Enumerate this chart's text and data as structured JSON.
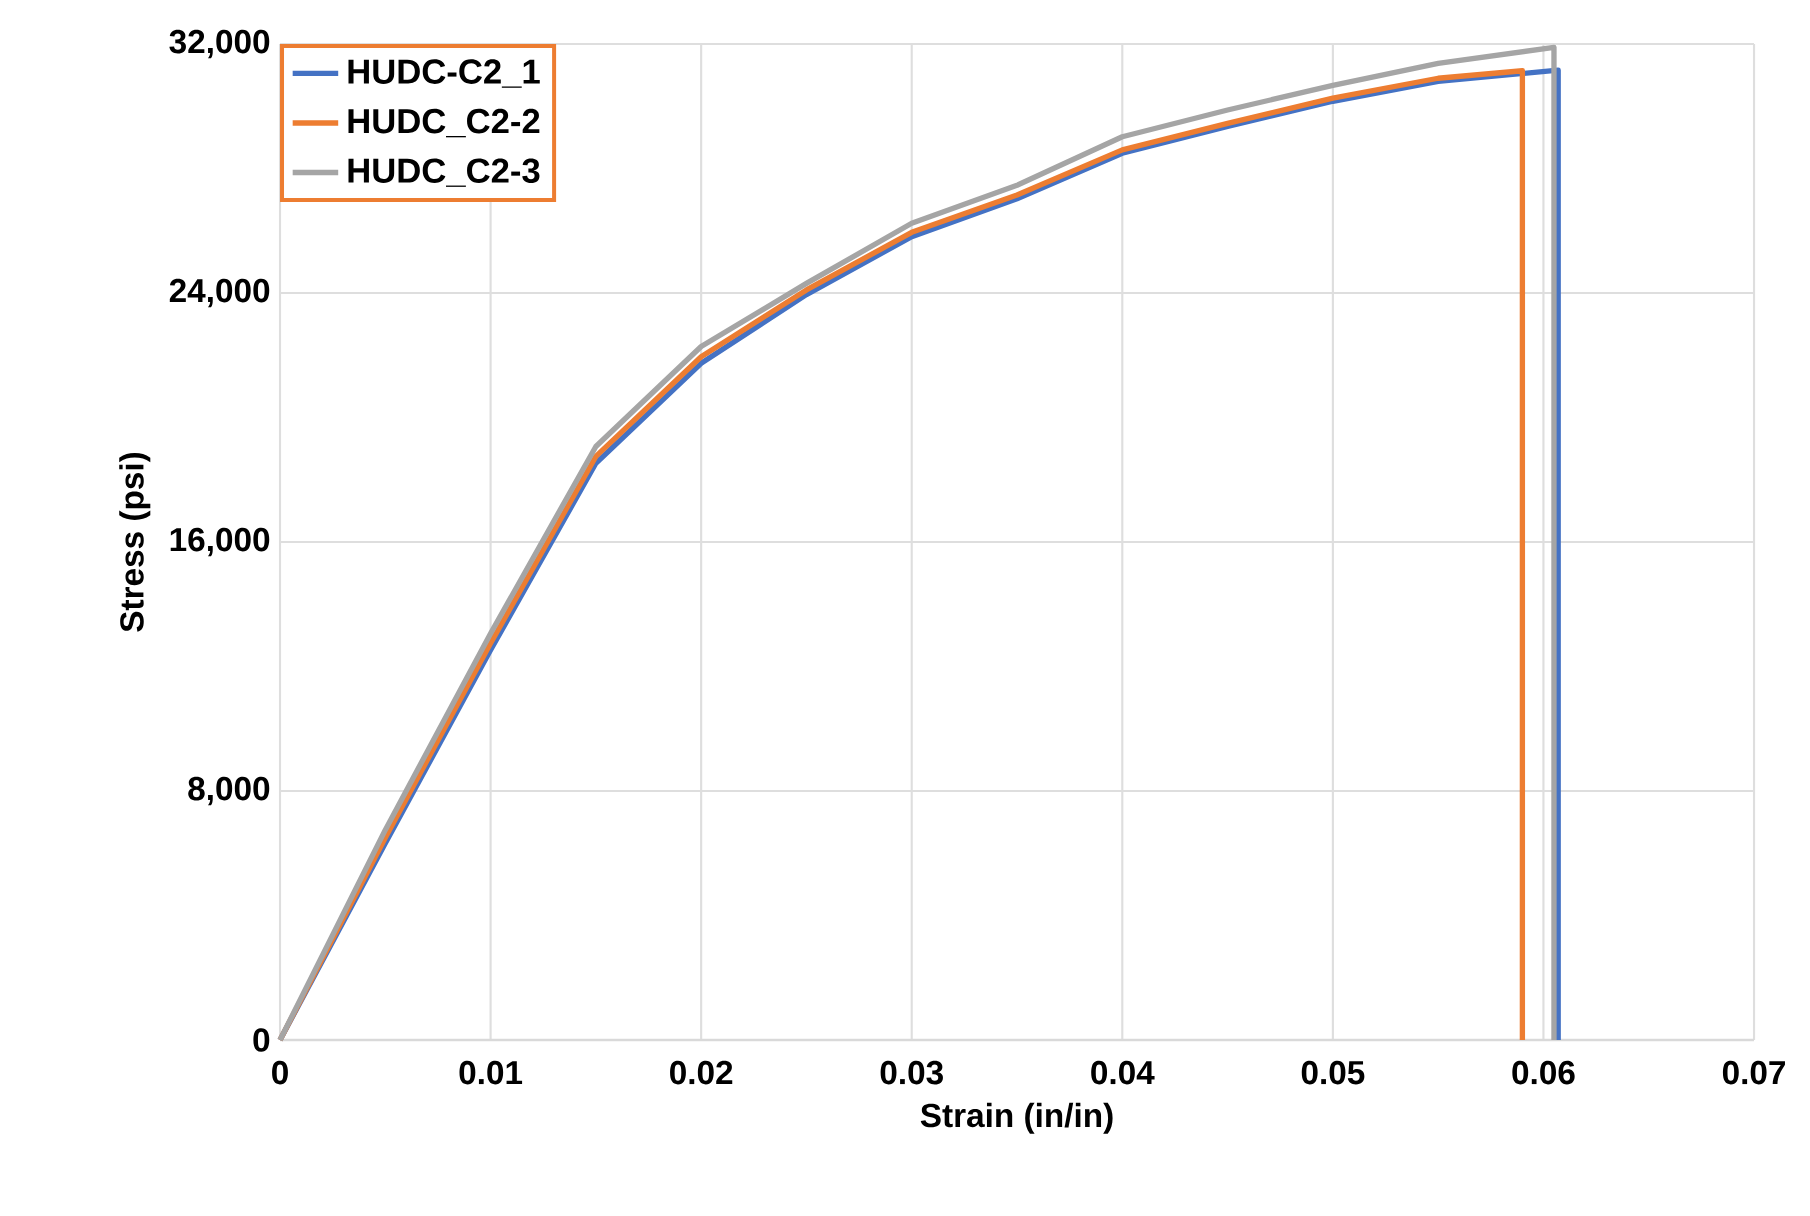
{
  "chart_data": {
    "type": "line",
    "xlabel": "Strain (in/in)",
    "ylabel": "Stress (psi)",
    "xlim": [
      0,
      0.07
    ],
    "ylim": [
      0,
      32000
    ],
    "xticks": [
      0,
      0.01,
      0.02,
      0.03,
      0.04,
      0.05,
      0.06,
      0.07
    ],
    "yticks": [
      {
        "value": 0,
        "label": "0"
      },
      {
        "value": 8000,
        "label": "8,000"
      },
      {
        "value": 16000,
        "label": "16,000"
      },
      {
        "value": 24000,
        "label": "24,000"
      },
      {
        "value": 32000,
        "label": "32,000"
      }
    ],
    "grid": true,
    "legend": "top left",
    "marker": "none",
    "line_style": "solid",
    "series": [
      {
        "name": "HUDC-C2_1",
        "color": "#4472c4",
        "x": [
          0,
          0.005,
          0.01,
          0.015,
          0.02,
          0.025,
          0.03,
          0.035,
          0.04,
          0.045,
          0.05,
          0.055,
          0.0607,
          0.0607
        ],
        "values": [
          0,
          6320,
          12530,
          18530,
          21740,
          23950,
          25810,
          27030,
          28490,
          29350,
          30160,
          30800,
          31160,
          0
        ]
      },
      {
        "name": "HUDC_C2-2",
        "color": "#ed7d31",
        "x": [
          0,
          0.005,
          0.01,
          0.015,
          0.02,
          0.025,
          0.03,
          0.035,
          0.04,
          0.045,
          0.05,
          0.055,
          0.059,
          0.059
        ],
        "values": [
          0,
          6500,
          12750,
          18750,
          21950,
          24100,
          25950,
          27150,
          28600,
          29450,
          30260,
          30900,
          31140,
          0
        ]
      },
      {
        "name": "HUDC_C2-3",
        "color": "#a5a5a5",
        "x": [
          0,
          0.005,
          0.01,
          0.015,
          0.02,
          0.025,
          0.03,
          0.035,
          0.04,
          0.045,
          0.05,
          0.055,
          0.0605,
          0.0605
        ],
        "values": [
          0,
          6750,
          13060,
          19070,
          22280,
          24310,
          26240,
          27460,
          29020,
          29880,
          30670,
          31380,
          31890,
          0
        ]
      }
    ]
  }
}
